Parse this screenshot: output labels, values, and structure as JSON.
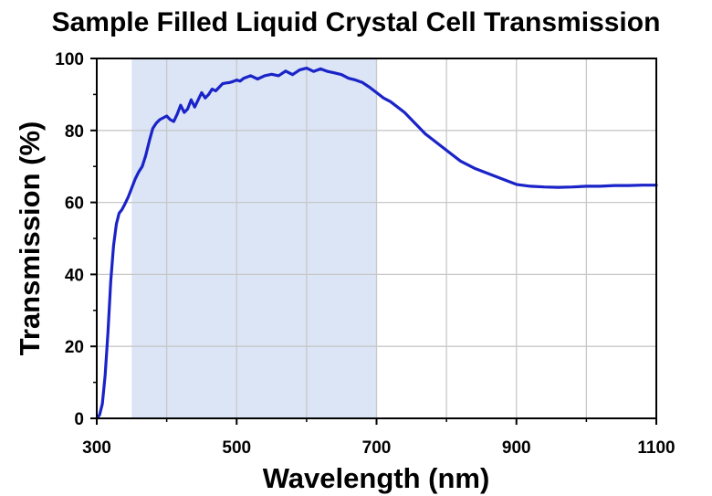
{
  "chart_data": {
    "type": "line",
    "title": "Sample Filled Liquid Crystal Cell Transmission",
    "xlabel": "Wavelength (nm)",
    "ylabel": "Transmission (%)",
    "xlim": [
      300,
      1100
    ],
    "ylim": [
      0,
      100
    ],
    "x_ticks": [
      300,
      500,
      700,
      900,
      1100
    ],
    "x_tick_labels": [
      "300",
      "500",
      "700",
      "900",
      "1100"
    ],
    "y_ticks": [
      0,
      20,
      40,
      60,
      80,
      100
    ],
    "y_tick_labels": [
      "0",
      "20",
      "40",
      "60",
      "80",
      "100"
    ],
    "x_grid": [
      400,
      500,
      600,
      700,
      800,
      900,
      1000
    ],
    "y_grid": [
      20,
      40,
      60,
      80
    ],
    "grid": true,
    "highlight_band": {
      "x_range": [
        350,
        700
      ],
      "color": "#dbe5f6"
    },
    "line_color": "#1a23c8",
    "series": [
      {
        "name": "",
        "x": [
          300,
          304,
          308,
          312,
          316,
          320,
          324,
          328,
          332,
          336,
          340,
          345,
          350,
          355,
          360,
          365,
          370,
          375,
          380,
          385,
          390,
          395,
          400,
          405,
          410,
          415,
          420,
          425,
          430,
          435,
          440,
          445,
          450,
          455,
          460,
          465,
          470,
          475,
          480,
          485,
          490,
          495,
          500,
          505,
          510,
          520,
          530,
          540,
          550,
          560,
          570,
          580,
          590,
          600,
          610,
          620,
          630,
          640,
          650,
          660,
          670,
          680,
          690,
          700,
          710,
          720,
          730,
          740,
          750,
          760,
          770,
          780,
          790,
          800,
          820,
          840,
          860,
          880,
          900,
          920,
          940,
          960,
          980,
          1000,
          1020,
          1040,
          1060,
          1080,
          1100
        ],
        "y": [
          0,
          1,
          4,
          12,
          24,
          38,
          48,
          54,
          57,
          58,
          59.5,
          61.5,
          64,
          66.5,
          68.5,
          70,
          73,
          77,
          80.5,
          82,
          83,
          83.5,
          84,
          83,
          82.5,
          84.5,
          87,
          85,
          86,
          88.5,
          86.5,
          88.5,
          90.5,
          89,
          90,
          91.5,
          91,
          92,
          93,
          93.2,
          93.3,
          93.6,
          94,
          93.7,
          94.5,
          95.2,
          94.3,
          95.2,
          95.6,
          95.2,
          96.5,
          95.5,
          96.8,
          97.3,
          96.4,
          97.1,
          96.4,
          96,
          95.5,
          94.5,
          94,
          93.3,
          92,
          90.5,
          89,
          88,
          86.5,
          85,
          83,
          81,
          79,
          77.5,
          76,
          74.5,
          71.5,
          69.5,
          68,
          66.5,
          65,
          64.5,
          64.3,
          64.2,
          64.3,
          64.5,
          64.5,
          64.7,
          64.7,
          64.8,
          64.8
        ]
      }
    ]
  }
}
